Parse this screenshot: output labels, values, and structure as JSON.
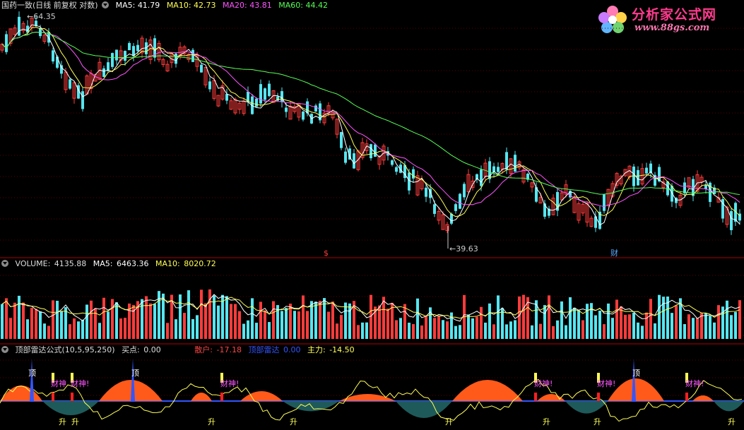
{
  "colors": {
    "up": "#ff3b3b",
    "down": "#55e6f0",
    "ma5": "#ffffff",
    "ma10": "#ffff55",
    "ma20": "#ff55ff",
    "ma60": "#55ff55"
  },
  "price_panel": {
    "title": "国药一致(日线 前复权 对数)",
    "ma5_label": "MA5:",
    "ma5_value": "41.79",
    "ma10_label": "MA10:",
    "ma10_value": "42.73",
    "ma20_label": "MA20:",
    "ma20_value": "43.81",
    "ma60_label": "MA60:",
    "ma60_value": "44.42",
    "high_label": "64.35",
    "low_label": "39.63",
    "mark_s": "$",
    "mark_cai": "财"
  },
  "volume_panel": {
    "label": "VOLUME:",
    "value": "4135.88",
    "ma5_label": "MA5:",
    "ma5_value": "6463.36",
    "ma10_label": "MA10:",
    "ma10_value": "8020.72"
  },
  "indicator_panel": {
    "title": "顶部雷达公式(10,5,95,250)",
    "buy_label": "买点:",
    "buy_value": "0.00",
    "retail_label": "散户:",
    "retail_value": "-17.18",
    "radar_label": "顶部雷达",
    "radar_value": "0.00",
    "main_label": "主力:",
    "main_value": "-14.50",
    "top_marks": [
      "顶",
      "顶",
      "顶"
    ],
    "caishen_marks": [
      "财神",
      "财神!",
      "财神!",
      "财神!",
      "财神!",
      "财神!"
    ],
    "rise_marks": [
      "升",
      "升",
      "升",
      "升",
      "升",
      "升",
      "升",
      "升"
    ]
  },
  "logo": {
    "name": "分析家公式网",
    "url": "www.88gs.com"
  },
  "chart_data": [
    {
      "type": "candlestick",
      "title": "国药一致(日线 前复权 对数)",
      "series": [
        {
          "name": "MA5",
          "value": 41.79
        },
        {
          "name": "MA10",
          "value": 42.73
        },
        {
          "name": "MA20",
          "value": 43.81
        },
        {
          "name": "MA60",
          "value": 44.42
        }
      ],
      "annotations": [
        "64.35",
        "39.63"
      ]
    },
    {
      "type": "bar",
      "title": "VOLUME",
      "series": [
        {
          "name": "VOLUME",
          "value": 4135.88
        },
        {
          "name": "MA5",
          "value": 6463.36
        },
        {
          "name": "MA10",
          "value": 8020.72
        }
      ]
    },
    {
      "type": "area",
      "title": "顶部雷达公式(10,5,95,250)",
      "series": [
        {
          "name": "买点",
          "value": 0.0
        },
        {
          "name": "散户",
          "value": -17.18
        },
        {
          "name": "顶部雷达",
          "value": 0.0
        },
        {
          "name": "主力",
          "value": -14.5
        }
      ]
    }
  ]
}
